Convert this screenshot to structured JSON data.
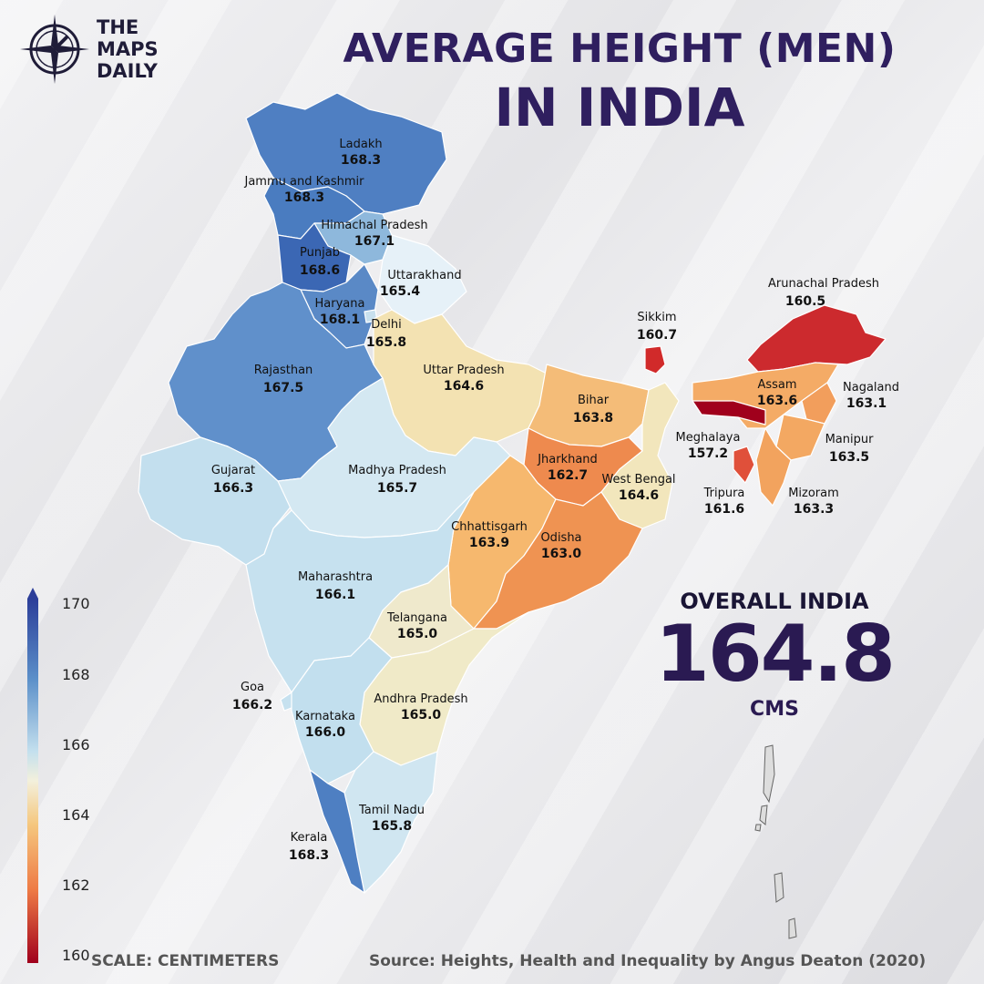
{
  "brand": {
    "line1": "THE",
    "line2": "MAPS",
    "line3": "DAILY"
  },
  "title": {
    "line1": "AVERAGE HEIGHT (MEN)",
    "line2": "IN INDIA"
  },
  "overall": {
    "label": "OVERALL INDIA",
    "value": "164.8",
    "unit": "CMS"
  },
  "footer": {
    "scale": "SCALE: CENTIMETERS",
    "source": "Source: Heights, Health and Inequality by Angus Deaton (2020)"
  },
  "legend": {
    "ticks": [
      "170",
      "168",
      "166",
      "164",
      "162",
      "160"
    ],
    "min": 160,
    "max": 170
  },
  "colors": {
    "title": "#2f1f5f",
    "high": "#2c3e99",
    "mid_high": "#5b8fc9",
    "light_blue": "#c4e0ee",
    "neutral": "#f0ead0",
    "orange": "#f0a458",
    "red": "#c8252a",
    "dark_red": "#a0001c"
  },
  "chart_data": {
    "type": "choropleth",
    "title": "AVERAGE HEIGHT (MEN) IN INDIA",
    "unit": "centimeters",
    "regions": [
      {
        "name": "Ladakh",
        "value": "168.3"
      },
      {
        "name": "Jammu and Kashmir",
        "value": "168.3"
      },
      {
        "name": "Himachal Pradesh",
        "value": "167.1"
      },
      {
        "name": "Punjab",
        "value": "168.6"
      },
      {
        "name": "Uttarakhand",
        "value": "165.4"
      },
      {
        "name": "Haryana",
        "value": "168.1"
      },
      {
        "name": "Delhi",
        "value": "165.8"
      },
      {
        "name": "Rajasthan",
        "value": "167.5"
      },
      {
        "name": "Uttar Pradesh",
        "value": "164.6"
      },
      {
        "name": "Bihar",
        "value": "163.8"
      },
      {
        "name": "Sikkim",
        "value": "160.7"
      },
      {
        "name": "Arunachal Pradesh",
        "value": "160.5"
      },
      {
        "name": "Assam",
        "value": "163.6"
      },
      {
        "name": "Nagaland",
        "value": "163.1"
      },
      {
        "name": "Meghalaya",
        "value": "157.2"
      },
      {
        "name": "Manipur",
        "value": "163.5"
      },
      {
        "name": "Tripura",
        "value": "161.6"
      },
      {
        "name": "Mizoram",
        "value": "163.3"
      },
      {
        "name": "Gujarat",
        "value": "166.3"
      },
      {
        "name": "Madhya Pradesh",
        "value": "165.7"
      },
      {
        "name": "Jharkhand",
        "value": "162.7"
      },
      {
        "name": "West Bengal",
        "value": "164.6"
      },
      {
        "name": "Chhattisgarh",
        "value": "163.9"
      },
      {
        "name": "Odisha",
        "value": "163.0"
      },
      {
        "name": "Maharashtra",
        "value": "166.1"
      },
      {
        "name": "Telangana",
        "value": "165.0"
      },
      {
        "name": "Goa",
        "value": "166.2"
      },
      {
        "name": "Karnataka",
        "value": "166.0"
      },
      {
        "name": "Andhra Pradesh",
        "value": "165.0"
      },
      {
        "name": "Tamil Nadu",
        "value": "165.8"
      },
      {
        "name": "Kerala",
        "value": "168.3"
      }
    ]
  }
}
